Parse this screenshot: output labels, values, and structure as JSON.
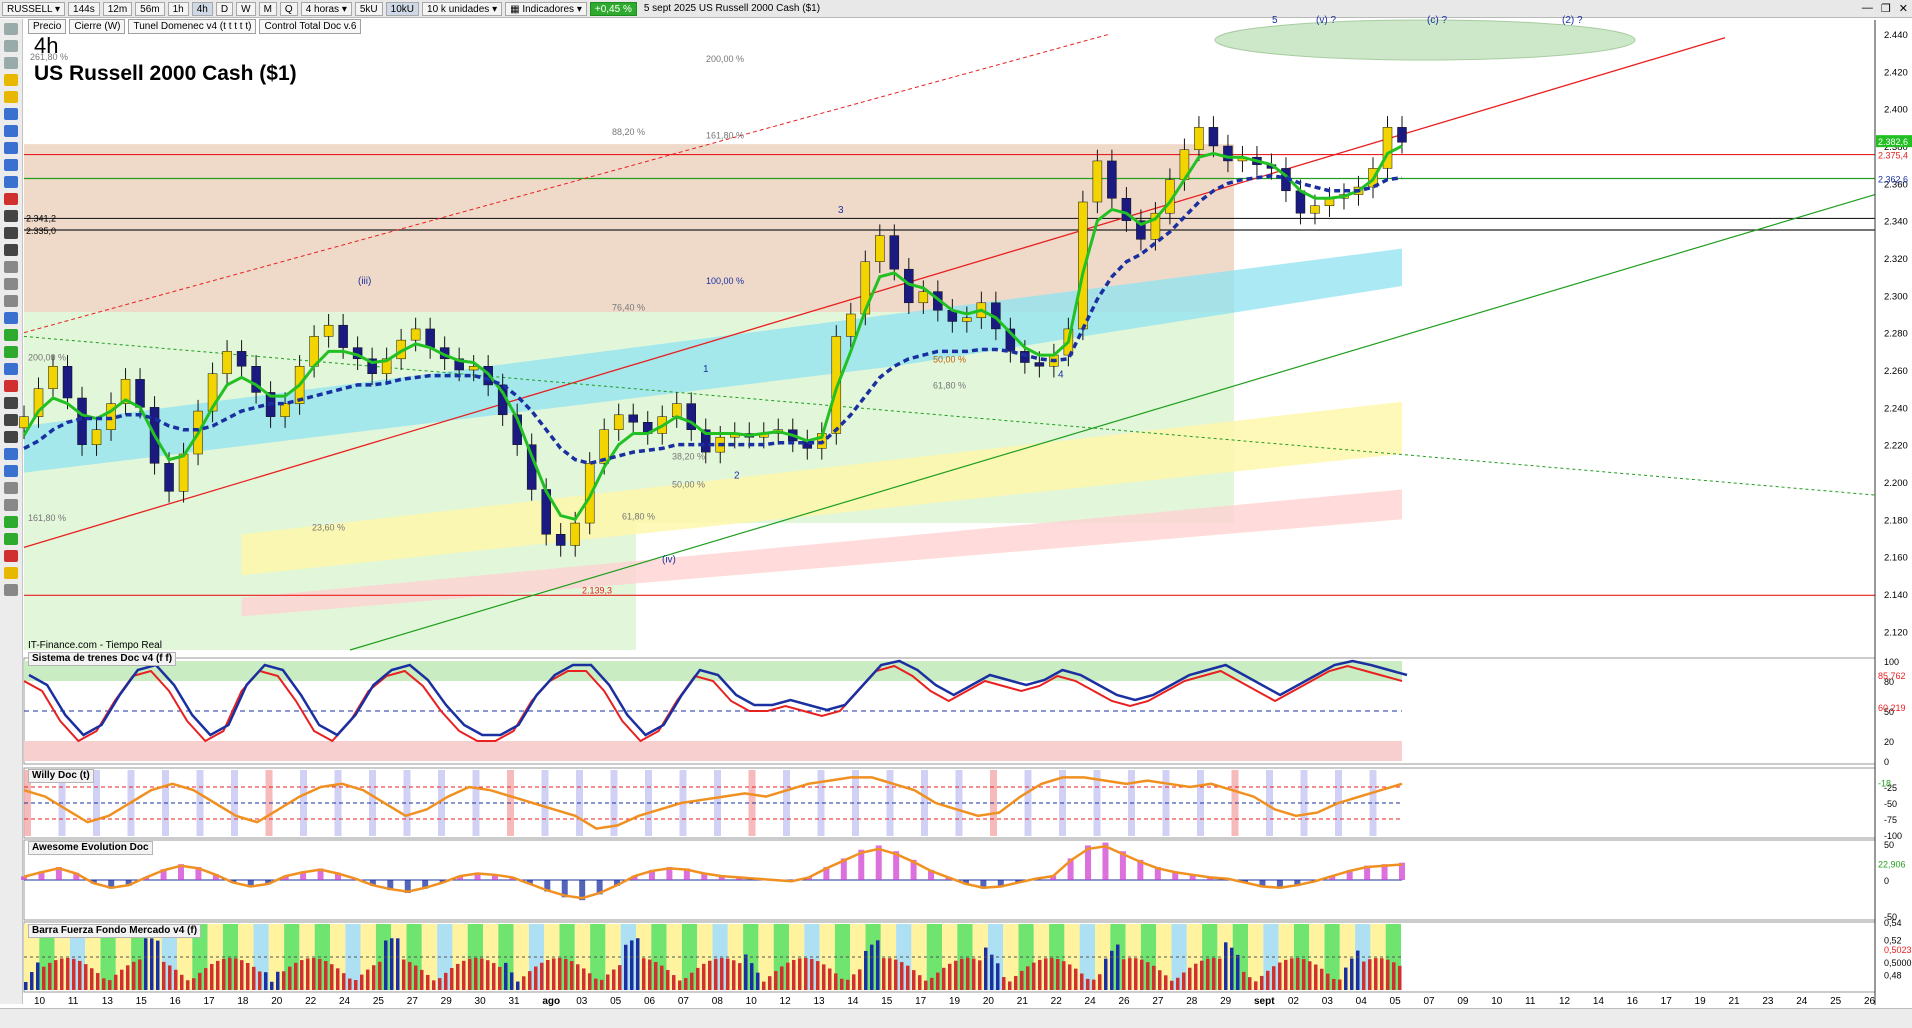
{
  "toolbar": {
    "symbol": "RUSSELL",
    "intervals": [
      "144s",
      "12m",
      "56m",
      "1h",
      "4h",
      "D",
      "W",
      "M",
      "Q"
    ],
    "active_interval": "4h",
    "period_select": "4 horas",
    "unit_buttons": [
      "5kU",
      "10kU"
    ],
    "units_select": "10 k unidades",
    "indicators_label": "Indicadores",
    "change_badge": "+0,45 %",
    "date_title": "5 sept 2025  US Russell 2000 Cash ($1)"
  },
  "indicator_tags": [
    "Precio",
    "Cierre (W)",
    "Tunel Domenec v4 (t t t t t)",
    "Control Total Doc v.6"
  ],
  "timeframe": "4h",
  "instrument_title": "US Russell 2000 Cash ($1)",
  "source": "IT-Finance.com - Tiempo Real",
  "panel_labels": [
    "Sistema de trenes Doc v4 (f f)",
    "Willy Doc (t)",
    "Awesome Evolution Doc",
    "Barra Fuerza Fondo Mercado v4 (f)"
  ],
  "colors": {
    "bull_candle": "#f2d400",
    "bear_candle": "#1a1a80",
    "fast_ma": "#23c023",
    "slow_ma": "#1b30a0",
    "red_trend": "#e82020",
    "green_trend": "#1e9e1e",
    "fill_brown": "#e9cdb8",
    "fill_lightgreen": "#dff5d6",
    "fill_cyan": "#8fe3f2"
  },
  "chart_data": [
    {
      "type": "candlestick",
      "title": "US Russell 2000 Cash ($1)",
      "timeframe": "4h",
      "ylim": [
        2110,
        2440
      ],
      "y_ticks": [
        2120,
        2140,
        2160,
        2180,
        2200,
        2220,
        2240,
        2260,
        2280,
        2300,
        2320,
        2340,
        2360,
        2380,
        2400,
        2420,
        2440
      ],
      "y_tick_labels": [
        "2.120",
        "2.140",
        "2.160",
        "2.180",
        "2.200",
        "2.220",
        "2.240",
        "2.260",
        "2.280",
        "2.300",
        "2.320",
        "2.340",
        "2.360",
        "2.380",
        "2.400",
        "2.420",
        "2.440"
      ],
      "x_labels": [
        "10",
        "11",
        "13",
        "15",
        "16",
        "17",
        "18",
        "20",
        "22",
        "24",
        "25",
        "27",
        "29",
        "30",
        "31",
        "ago",
        "03",
        "05",
        "06",
        "07",
        "08",
        "10",
        "12",
        "13",
        "14",
        "15",
        "17",
        "19",
        "20",
        "21",
        "22",
        "24",
        "26",
        "27",
        "28",
        "29",
        "sept",
        "02",
        "03",
        "04",
        "05",
        "07",
        "09",
        "10",
        "11",
        "12",
        "14",
        "16",
        "17",
        "19",
        "21",
        "23",
        "24",
        "25",
        "26"
      ],
      "closes": [
        2235,
        2250,
        2262,
        2245,
        2220,
        2228,
        2242,
        2255,
        2240,
        2210,
        2195,
        2215,
        2238,
        2258,
        2270,
        2262,
        2248,
        2235,
        2242,
        2262,
        2278,
        2284,
        2272,
        2266,
        2258,
        2266,
        2276,
        2282,
        2272,
        2266,
        2260,
        2262,
        2252,
        2236,
        2220,
        2196,
        2172,
        2166,
        2178,
        2210,
        2228,
        2236,
        2232,
        2226,
        2235,
        2242,
        2228,
        2216,
        2224,
        2226,
        2224,
        2226,
        2228,
        2222,
        2218,
        2226,
        2278,
        2290,
        2318,
        2332,
        2314,
        2296,
        2302,
        2292,
        2286,
        2288,
        2296,
        2282,
        2270,
        2264,
        2262,
        2268,
        2282,
        2350,
        2372,
        2352,
        2340,
        2330,
        2344,
        2362,
        2378,
        2390,
        2380,
        2372,
        2374,
        2370,
        2368,
        2356,
        2344,
        2348,
        2352,
        2354,
        2358,
        2368,
        2390,
        2382
      ],
      "current_price": "2.382,6",
      "series": [
        {
          "name": "",
          "points": [
            2225,
            2238,
            2245,
            2242,
            2236,
            2234,
            2238,
            2244,
            2240,
            2225,
            2212,
            2214,
            2226,
            2240,
            2252,
            2256,
            2252,
            2246,
            2246,
            2252,
            2262,
            2270,
            2270,
            2268,
            2264,
            2265,
            2270,
            2274,
            2272,
            2268,
            2265,
            2264,
            2258,
            2248,
            2234,
            2214,
            2195,
            2182,
            2180,
            2192,
            2208,
            2220,
            2226,
            2226,
            2230,
            2235,
            2232,
            2226,
            2226,
            2226,
            2225,
            2226,
            2227,
            2225,
            2222,
            2224,
            2250,
            2270,
            2292,
            2310,
            2312,
            2306,
            2304,
            2298,
            2292,
            2290,
            2292,
            2288,
            2280,
            2272,
            2268,
            2268,
            2275,
            2312,
            2340,
            2346,
            2344,
            2338,
            2341,
            2350,
            2362,
            2374,
            2376,
            2374,
            2374,
            2372,
            2370,
            2364,
            2356,
            2352,
            2352,
            2353,
            2356,
            2362,
            2376,
            2380
          ]
        },
        {
          "name": "",
          "points": [
            2218,
            2222,
            2228,
            2232,
            2234,
            2234,
            2234,
            2236,
            2236,
            2234,
            2230,
            2228,
            2228,
            2230,
            2234,
            2238,
            2240,
            2242,
            2242,
            2244,
            2246,
            2248,
            2250,
            2252,
            2252,
            2253,
            2255,
            2256,
            2257,
            2257,
            2257,
            2257,
            2255,
            2252,
            2246,
            2238,
            2228,
            2218,
            2212,
            2210,
            2212,
            2214,
            2216,
            2217,
            2218,
            2220,
            2220,
            2220,
            2220,
            2220,
            2220,
            2220,
            2221,
            2221,
            2221,
            2221,
            2228,
            2236,
            2246,
            2256,
            2262,
            2266,
            2268,
            2270,
            2270,
            2270,
            2271,
            2271,
            2270,
            2268,
            2266,
            2265,
            2266,
            2282,
            2298,
            2310,
            2318,
            2322,
            2328,
            2334,
            2342,
            2350,
            2356,
            2360,
            2362,
            2363,
            2364,
            2363,
            2360,
            2358,
            2356,
            2356,
            2356,
            2358,
            2362,
            2363
          ]
        }
      ],
      "levels": [
        {
          "label": "2.341,2",
          "value": 2341.2
        },
        {
          "label": "2.335,0",
          "value": 2335.0
        },
        {
          "label": "2.375,4",
          "value": 2375.4
        },
        {
          "label": "2.362,6",
          "value": 2362.6
        },
        {
          "label": "2.139,3",
          "value": 2139.3
        }
      ],
      "fib_labels": [
        "261,80 %",
        "200,00 %",
        "88,20 %",
        "161,80 %",
        "100,00 %",
        "76,40 %",
        "50,00 %",
        "61,80 %",
        "200,00 %",
        "161,80 %",
        "23,60 %",
        "50,00 %",
        "61,80 %",
        "38,20 %"
      ],
      "wave_labels": [
        "5",
        "(v) ?",
        "(c) ?",
        "(2) ?",
        "3",
        "(iii)",
        "1",
        "2",
        "4",
        "(iv)"
      ]
    },
    {
      "type": "line",
      "name": "Sistema de trenes Doc v4 (f f)",
      "ylim": [
        0,
        100
      ],
      "y_tick_labels": [
        "100",
        "80",
        "50",
        "20",
        "0"
      ],
      "values_labels": [
        "85,762",
        "60,219"
      ],
      "series": [
        {
          "name": "",
          "values": [
            80,
            70,
            40,
            20,
            30,
            60,
            85,
            90,
            70,
            40,
            20,
            30,
            70,
            90,
            85,
            60,
            30,
            20,
            40,
            70,
            85,
            90,
            75,
            50,
            30,
            20,
            20,
            30,
            60,
            80,
            90,
            90,
            70,
            40,
            20,
            30,
            60,
            85,
            80,
            60,
            50,
            50,
            55,
            50,
            45,
            50,
            70,
            90,
            95,
            85,
            70,
            60,
            70,
            80,
            75,
            70,
            75,
            85,
            80,
            70,
            60,
            55,
            60,
            70,
            80,
            85,
            90,
            80,
            70,
            60,
            70,
            80,
            90,
            95,
            90,
            85,
            80
          ]
        }
      ]
    },
    {
      "type": "line",
      "name": "Willy Doc (t)",
      "ylim": [
        -100,
        0
      ],
      "y_tick_labels": [
        "-25",
        "-50",
        "-75",
        "-100"
      ],
      "values_labels": [
        "-18"
      ],
      "series": [
        {
          "name": "",
          "values": [
            -30,
            -40,
            -60,
            -80,
            -70,
            -50,
            -30,
            -20,
            -30,
            -50,
            -70,
            -80,
            -60,
            -40,
            -25,
            -20,
            -30,
            -50,
            -70,
            -60,
            -40,
            -25,
            -30,
            -40,
            -50,
            -60,
            -70,
            -90,
            -85,
            -70,
            -60,
            -50,
            -45,
            -40,
            -35,
            -40,
            -30,
            -20,
            -15,
            -10,
            -10,
            -20,
            -30,
            -50,
            -60,
            -70,
            -65,
            -40,
            -20,
            -10,
            -10,
            -15,
            -20,
            -15,
            -20,
            -25,
            -20,
            -30,
            -40,
            -60,
            -70,
            -65,
            -50,
            -40,
            -30,
            -20
          ]
        }
      ]
    },
    {
      "type": "bar",
      "name": "Awesome Evolution Doc",
      "ylim": [
        -50,
        50
      ],
      "y_tick_labels": [
        "50",
        "0",
        "-50"
      ],
      "values_labels": [
        "22,906"
      ],
      "values": [
        5,
        12,
        18,
        10,
        -5,
        -12,
        -8,
        4,
        15,
        22,
        18,
        8,
        -4,
        -10,
        -6,
        6,
        12,
        16,
        10,
        2,
        -8,
        -14,
        -18,
        -12,
        -4,
        6,
        10,
        8,
        4,
        -6,
        -16,
        -24,
        -28,
        -20,
        -8,
        6,
        14,
        18,
        16,
        10,
        6,
        4,
        2,
        0,
        -2,
        4,
        18,
        30,
        42,
        48,
        40,
        28,
        14,
        4,
        -6,
        -12,
        -10,
        -4,
        2,
        6,
        30,
        48,
        52,
        40,
        28,
        18,
        12,
        8,
        4,
        2,
        -4,
        -10,
        -12,
        -8,
        -2,
        6,
        14,
        20,
        22,
        24
      ]
    },
    {
      "type": "bar",
      "name": "Barra Fuerza Fondo Mercado v4 (f)",
      "ylim": [
        0.46,
        0.54
      ],
      "y_tick_labels": [
        "0,54",
        "0,52",
        "0,5023",
        "0,5000",
        "0,48"
      ],
      "values_labels": [
        "0,5023",
        "0,5000"
      ]
    }
  ]
}
